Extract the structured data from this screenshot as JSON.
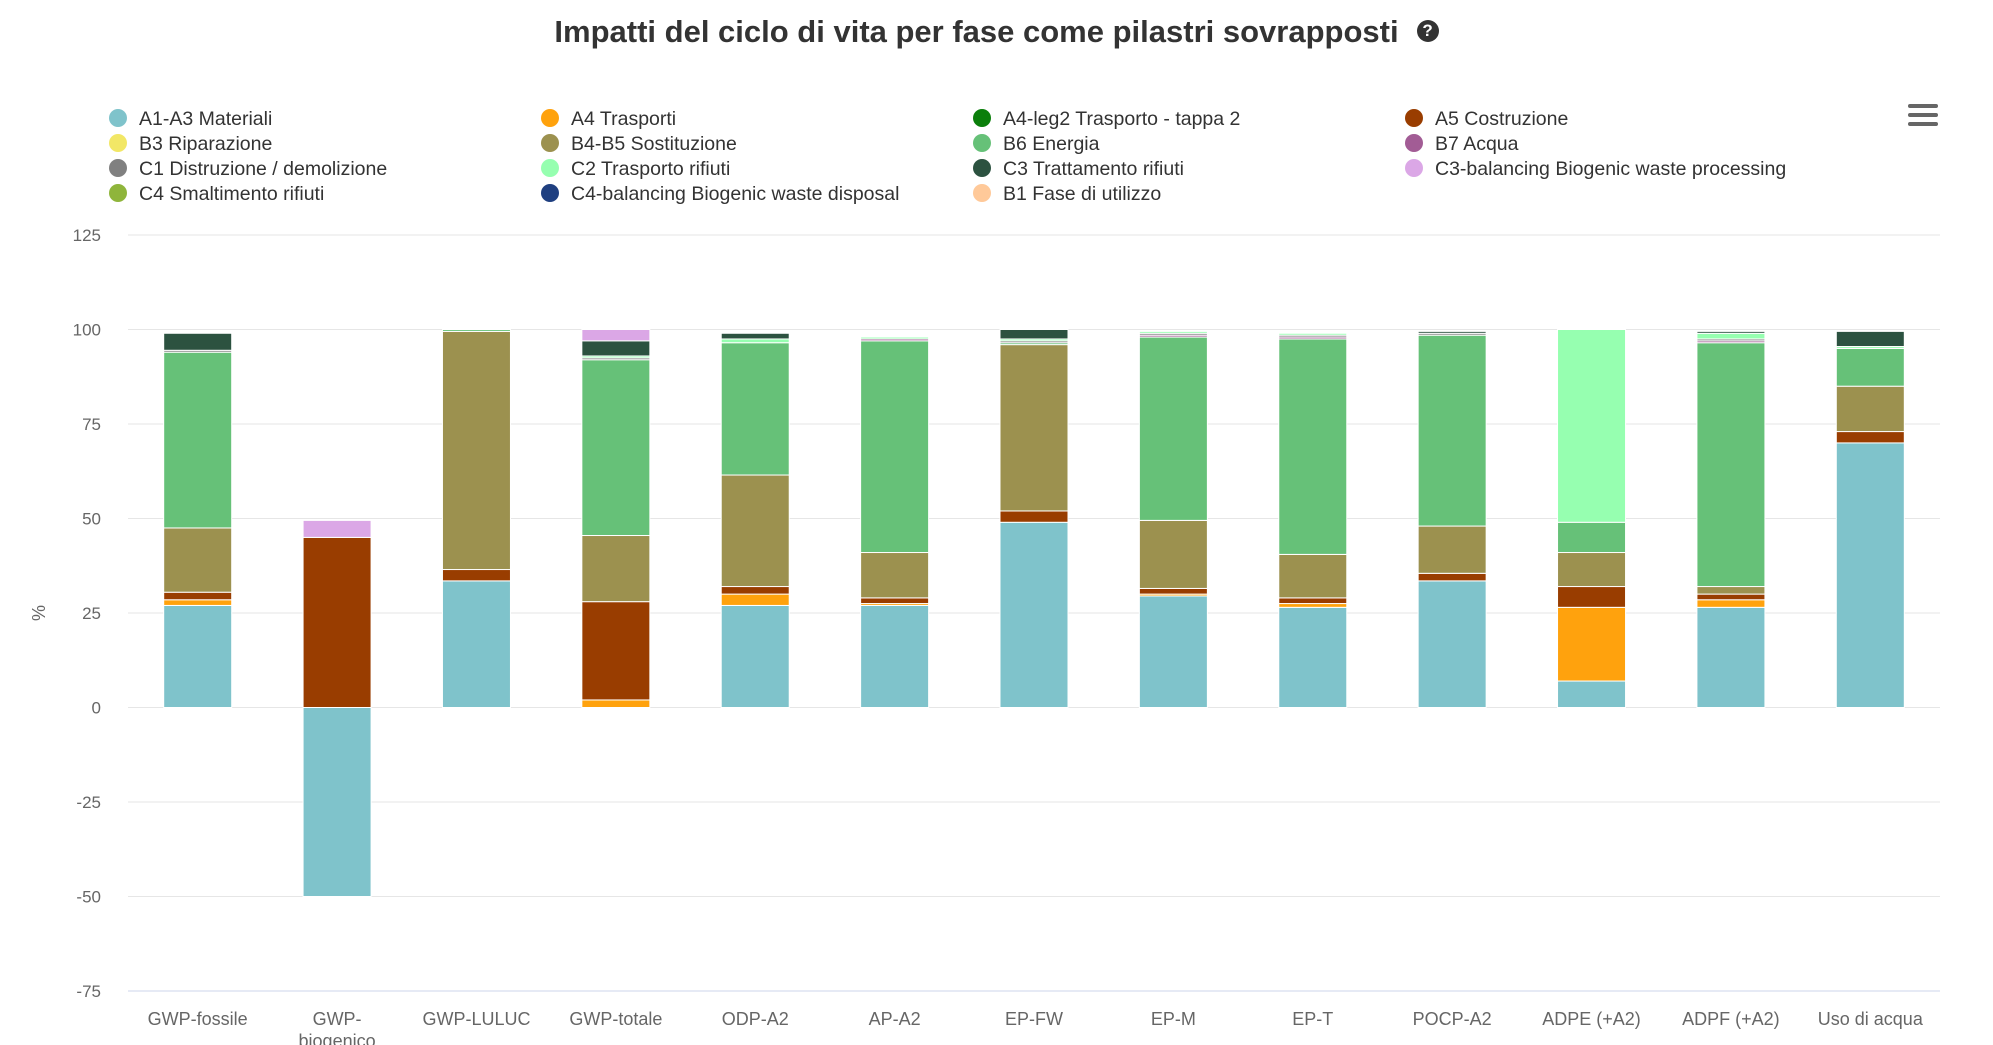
{
  "title": "Impatti del ciclo di vita per fase come pilastri sovrapposti",
  "help_icon": "question-circle-icon",
  "menu_icon": "hamburger-menu-icon",
  "chart_data": {
    "type": "bar",
    "stacked": true,
    "title": "Impatti del ciclo di vita per fase come pilastri sovrapposti",
    "xlabel": "",
    "ylabel": "%",
    "ylim": [
      -75,
      125
    ],
    "yticks": [
      125,
      100,
      75,
      50,
      25,
      0,
      -25,
      -50,
      -75
    ],
    "grid": true,
    "legend_position": "top",
    "categories": [
      "GWP-fossile",
      "GWP-biogenico",
      "GWP-LULUC",
      "GWP-totale",
      "ODP-A2",
      "AP-A2",
      "EP-FW",
      "EP-M",
      "EP-T",
      "POCP-A2",
      "ADPE (+A2)",
      "ADPF (+A2)",
      "Uso di acqua"
    ],
    "series": [
      {
        "name": "A1-A3 Materiali",
        "color": "#7fc3cb",
        "values": [
          27,
          -50,
          33.5,
          0,
          27,
          27,
          49,
          29.5,
          26.5,
          33.5,
          7,
          26.5,
          70
        ]
      },
      {
        "name": "A4 Trasporti",
        "color": "#ffa20d",
        "values": [
          1.5,
          0,
          0,
          2,
          3,
          0.5,
          0,
          0.5,
          1,
          0,
          19.5,
          2,
          0
        ]
      },
      {
        "name": "A4-leg2 Trasporto - tappa 2",
        "color": "#0b7f0b",
        "values": [
          0,
          0,
          0,
          0,
          0,
          0,
          0,
          0,
          0,
          0,
          0,
          0,
          0
        ]
      },
      {
        "name": "A5 Costruzione",
        "color": "#993d00",
        "values": [
          2,
          45,
          3,
          26,
          2,
          1.5,
          3,
          1.5,
          1.5,
          2,
          5.5,
          1.5,
          3
        ]
      },
      {
        "name": "B3 Riparazione",
        "color": "#f2e766",
        "values": [
          0,
          0,
          0,
          0,
          0,
          0,
          0,
          0,
          0,
          0,
          0,
          0,
          0
        ]
      },
      {
        "name": "B4-B5 Sostituzione",
        "color": "#9c914f",
        "values": [
          17,
          0,
          63,
          17.5,
          29.5,
          12,
          44,
          18,
          11.5,
          12.5,
          9,
          2,
          12
        ]
      },
      {
        "name": "B6 Energia",
        "color": "#66c178",
        "values": [
          46.5,
          0,
          0.5,
          46.5,
          35,
          56,
          0.5,
          48.5,
          57,
          50.5,
          8,
          64.5,
          10
        ]
      },
      {
        "name": "B7 Acqua",
        "color": "#a25c95",
        "values": [
          0,
          0,
          0,
          0,
          0,
          0.5,
          0,
          0.5,
          0.5,
          0,
          0,
          0.5,
          0
        ]
      },
      {
        "name": "C1 Distruzione / demolizione",
        "color": "#808080",
        "values": [
          0.5,
          0,
          0,
          0.5,
          0,
          0,
          0.5,
          0.5,
          0.5,
          0.5,
          0,
          0.5,
          0
        ]
      },
      {
        "name": "C2 Trasporto rifiuti",
        "color": "#96ffb0",
        "values": [
          0,
          0,
          0,
          0.5,
          1,
          0.5,
          0.5,
          0.5,
          0.5,
          0,
          51,
          1.5,
          0.5
        ]
      },
      {
        "name": "C3 Trattamento rifiuti",
        "color": "#2c5240",
        "values": [
          4.5,
          0,
          0,
          4,
          1.5,
          0,
          2.5,
          0,
          0,
          0.5,
          0,
          0.5,
          4
        ]
      },
      {
        "name": "C3-balancing Biogenic waste processing",
        "color": "#dba7e6",
        "values": [
          0,
          4.5,
          0,
          3,
          0,
          0,
          0,
          0,
          0,
          0,
          0,
          0,
          0
        ]
      },
      {
        "name": "C4 Smaltimento rifiuti",
        "color": "#8fb53b",
        "values": [
          0,
          0,
          0,
          0,
          0,
          0,
          0,
          0,
          0,
          0,
          0,
          0,
          0
        ]
      },
      {
        "name": "C4-balancing Biogenic waste disposal",
        "color": "#1f3f80",
        "values": [
          0,
          0,
          0,
          0,
          0,
          0,
          0,
          0,
          0,
          0,
          0,
          0,
          0
        ]
      },
      {
        "name": "B1 Fase di utilizzo",
        "color": "#ffc999",
        "values": [
          0,
          0,
          0,
          0,
          0,
          0,
          0,
          0,
          0,
          0,
          0,
          0,
          0
        ]
      }
    ]
  }
}
